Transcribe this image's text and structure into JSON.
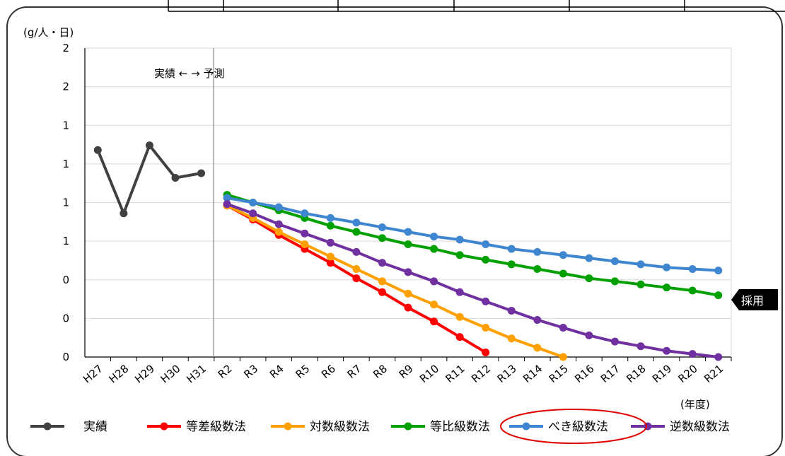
{
  "chart_data": {
    "type": "line",
    "y_unit": "(g/人・日)",
    "x_unit": "(年度)",
    "ylim": [
      0,
      2
    ],
    "y_ticks": [
      0,
      0.25,
      0.5,
      0.75,
      1.0,
      1.25,
      1.5,
      1.75,
      2.0
    ],
    "y_tick_labels": [
      "0",
      "0",
      "0",
      "1",
      "1",
      "1",
      "1",
      "2",
      "2"
    ],
    "grid": true,
    "legend_position": "bottom",
    "categories": [
      "H27",
      "H28",
      "H29",
      "H30",
      "H31",
      "R2",
      "R3",
      "R4",
      "R5",
      "R6",
      "R7",
      "R8",
      "R9",
      "R10",
      "R11",
      "R12",
      "R13",
      "R14",
      "R15",
      "R16",
      "R17",
      "R18",
      "R19",
      "R20",
      "R21"
    ],
    "annotation_text": "実績 ← → 予測",
    "badge_text": "採用",
    "highlighted_series": "べき級数法",
    "series": [
      {
        "name": "実績",
        "color": "#404040",
        "values": [
          1.34,
          0.93,
          1.37,
          1.16,
          1.19,
          null,
          null,
          null,
          null,
          null,
          null,
          null,
          null,
          null,
          null,
          null,
          null,
          null,
          null,
          null,
          null,
          null,
          null,
          null,
          null
        ]
      },
      {
        "name": "等差級数法",
        "color": "#ff0000",
        "values": [
          null,
          null,
          null,
          null,
          null,
          0.98,
          0.89,
          0.79,
          0.7,
          0.61,
          0.51,
          0.42,
          0.32,
          0.23,
          0.13,
          0.03,
          null,
          null,
          null,
          null,
          null,
          null,
          null,
          null,
          null
        ]
      },
      {
        "name": "対数級数法",
        "color": "#ffa000",
        "values": [
          null,
          null,
          null,
          null,
          null,
          0.98,
          0.9,
          0.81,
          0.73,
          0.65,
          0.57,
          0.49,
          0.41,
          0.34,
          0.26,
          0.19,
          0.12,
          0.06,
          0.0,
          null,
          null,
          null,
          null,
          null,
          null
        ]
      },
      {
        "name": "等比級数法",
        "color": "#00a000",
        "values": [
          null,
          null,
          null,
          null,
          null,
          1.05,
          1.0,
          0.95,
          0.9,
          0.85,
          0.81,
          0.77,
          0.73,
          0.7,
          0.66,
          0.63,
          0.6,
          0.57,
          0.54,
          0.51,
          0.49,
          0.47,
          0.45,
          0.43,
          0.4
        ]
      },
      {
        "name": "べき級数法",
        "color": "#3f86d0",
        "values": [
          null,
          null,
          null,
          null,
          null,
          1.03,
          1.0,
          0.97,
          0.93,
          0.9,
          0.87,
          0.84,
          0.81,
          0.78,
          0.76,
          0.73,
          0.7,
          0.68,
          0.66,
          0.64,
          0.62,
          0.6,
          0.58,
          0.57,
          0.56
        ]
      },
      {
        "name": "逆数級数法",
        "color": "#7030a0",
        "values": [
          null,
          null,
          null,
          null,
          null,
          0.99,
          0.93,
          0.86,
          0.8,
          0.74,
          0.68,
          0.61,
          0.55,
          0.49,
          0.42,
          0.36,
          0.3,
          0.24,
          0.19,
          0.14,
          0.1,
          0.07,
          0.04,
          0.02,
          0.0
        ]
      }
    ]
  }
}
